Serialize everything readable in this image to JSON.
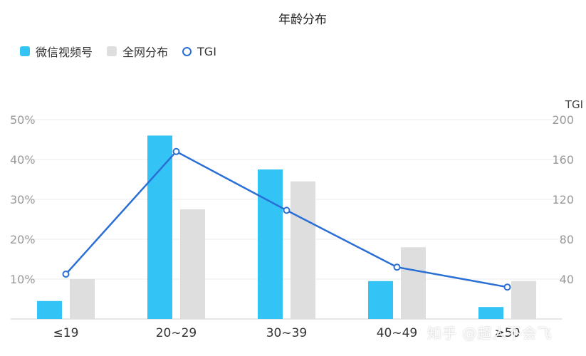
{
  "chart_data": {
    "type": "bar",
    "title": "年龄分布",
    "categories": [
      "≤19",
      "20~29",
      "30~39",
      "40~49",
      "≥50"
    ],
    "series": [
      {
        "name": "微信视频号",
        "kind": "bar",
        "axis": "left",
        "color": "#33c4f5",
        "values": [
          4.5,
          46,
          37.5,
          9.5,
          3
        ]
      },
      {
        "name": "全网分布",
        "kind": "bar",
        "axis": "left",
        "color": "#dedede",
        "values": [
          10,
          27.5,
          34.5,
          18,
          9.5
        ]
      },
      {
        "name": "TGI",
        "kind": "line",
        "axis": "right",
        "color": "#2a6fd6",
        "values": [
          45,
          168,
          109,
          52,
          32
        ]
      }
    ],
    "left_axis": {
      "ylim": [
        0,
        50
      ],
      "ticks": [
        "10%",
        "20%",
        "30%",
        "40%",
        "50%"
      ]
    },
    "right_axis": {
      "label": "TGI",
      "ylim": [
        0,
        200
      ],
      "ticks": [
        "40",
        "80",
        "120",
        "160",
        "200"
      ]
    },
    "grid": true,
    "legend": "top-left"
  },
  "watermark": "知乎 @超人不会飞"
}
